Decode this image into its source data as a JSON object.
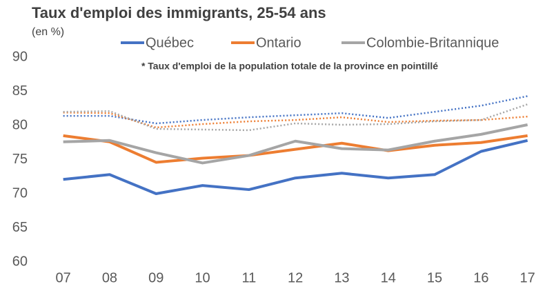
{
  "chart_data": {
    "type": "line",
    "title": "Taux d'emploi des immigrants, 25-54 ans",
    "subtitle": "(en %)",
    "annotation": "* Taux d'emploi de la population totale de la province en pointillé",
    "categories": [
      "07",
      "08",
      "09",
      "10",
      "11",
      "12",
      "13",
      "14",
      "15",
      "16",
      "17"
    ],
    "series": [
      {
        "name": "Québec",
        "color": "#4472c4",
        "style": "solid",
        "values": [
          72.1,
          72.8,
          70.0,
          71.2,
          70.6,
          72.3,
          73.0,
          72.3,
          72.8,
          76.2,
          77.8
        ]
      },
      {
        "name": "Ontario",
        "color": "#ed7d31",
        "style": "solid",
        "values": [
          78.5,
          77.6,
          74.6,
          75.2,
          75.6,
          76.5,
          77.4,
          76.3,
          77.1,
          77.5,
          78.5
        ]
      },
      {
        "name": "Colombie-Britannique",
        "color": "#a5a5a5",
        "style": "solid",
        "values": [
          77.6,
          77.8,
          76.0,
          74.5,
          75.6,
          77.7,
          76.6,
          76.4,
          77.7,
          78.7,
          80.1
        ]
      },
      {
        "color": "#4472c4",
        "style": "dotted",
        "values": [
          81.4,
          81.4,
          80.3,
          80.8,
          81.2,
          81.5,
          81.8,
          81.1,
          82.0,
          82.9,
          84.3
        ]
      },
      {
        "color": "#ed7d31",
        "style": "dotted",
        "values": [
          81.9,
          81.8,
          79.7,
          80.2,
          80.6,
          80.8,
          81.2,
          80.5,
          80.7,
          80.8,
          81.3
        ]
      },
      {
        "color": "#a5a5a5",
        "style": "dotted",
        "values": [
          82.0,
          82.1,
          79.5,
          79.4,
          79.3,
          80.3,
          80.1,
          80.2,
          80.6,
          80.8,
          83.1
        ]
      }
    ],
    "ylim": [
      60,
      90
    ],
    "yticks": [
      60,
      65,
      70,
      75,
      80,
      85,
      90
    ],
    "grid": false,
    "legend": "top"
  }
}
